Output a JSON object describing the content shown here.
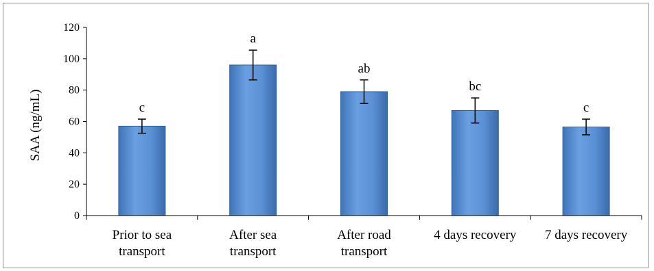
{
  "chart_data": {
    "type": "bar",
    "title": "",
    "xlabel": "",
    "ylabel": "SAA (ng/mL)",
    "ylim": [
      0,
      120
    ],
    "yticks": [
      0,
      20,
      40,
      60,
      80,
      100,
      120
    ],
    "grid": false,
    "legend": "none",
    "categories": [
      [
        "Prior to sea",
        "transport"
      ],
      [
        "After sea",
        "transport"
      ],
      [
        "After road",
        "transport"
      ],
      [
        "4 days recovery"
      ],
      [
        "7 days recovery"
      ]
    ],
    "series": [
      {
        "values": [
          57,
          96,
          79,
          67,
          56.5
        ],
        "error": [
          4.5,
          9.5,
          7.5,
          8,
          5
        ],
        "significance": [
          "c",
          "a",
          "ab",
          "bc",
          "c"
        ]
      }
    ],
    "colors": {
      "bar_fill": "#558ed5",
      "bar_edge": "#2e5f9e",
      "axis": "#000000"
    }
  }
}
